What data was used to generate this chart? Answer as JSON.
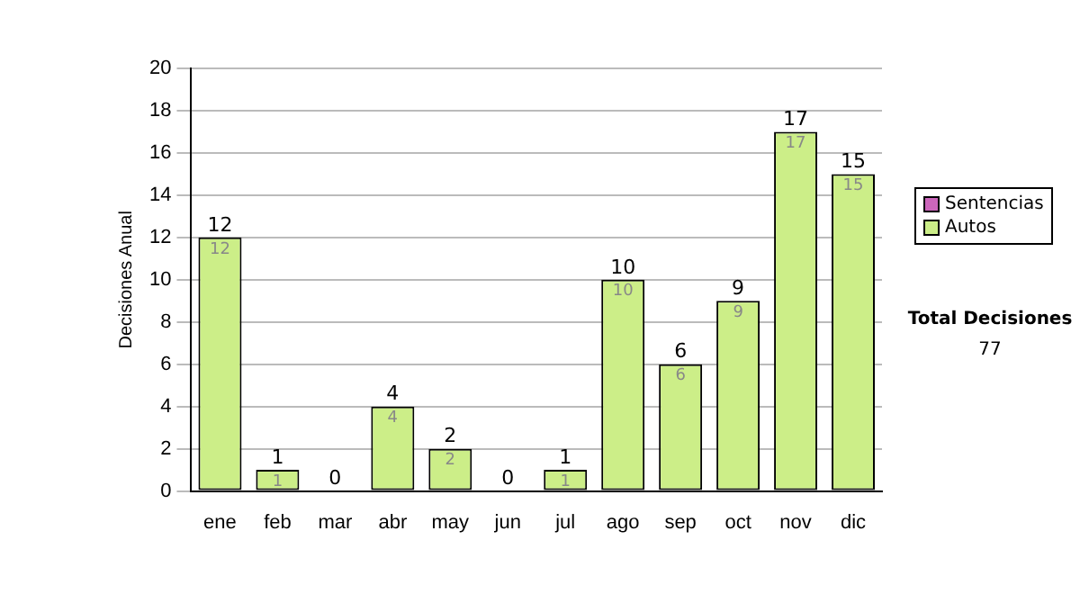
{
  "chart_data": {
    "type": "bar",
    "stacked": true,
    "ylabel": "Decisiones Anual",
    "categories": [
      "ene",
      "feb",
      "mar",
      "abr",
      "may",
      "jun",
      "jul",
      "ago",
      "sep",
      "oct",
      "nov",
      "dic"
    ],
    "series": [
      {
        "name": "Autos",
        "color": "#ccee88",
        "values": [
          12,
          1,
          0,
          4,
          2,
          0,
          1,
          10,
          6,
          9,
          17,
          15
        ],
        "value_labels": [
          "12",
          "1",
          null,
          "4",
          "2",
          null,
          "1",
          "10",
          "6",
          "9",
          "17",
          "15"
        ]
      },
      {
        "name": "Sentencias",
        "color": "#cc66bb",
        "values": [
          0,
          0,
          0,
          0,
          0,
          0,
          0,
          0,
          0,
          0,
          0,
          0
        ]
      }
    ],
    "totals": [
      "12",
      "1",
      "0",
      "4",
      "2",
      "0",
      "1",
      "10",
      "6",
      "9",
      "17",
      "15"
    ],
    "ylim": [
      0,
      20
    ],
    "yticks": [
      0,
      2,
      4,
      6,
      8,
      10,
      12,
      14,
      16,
      18,
      20
    ],
    "grid": "y",
    "legend": "right",
    "annotations": [
      "Total Decisiones",
      "77"
    ]
  }
}
